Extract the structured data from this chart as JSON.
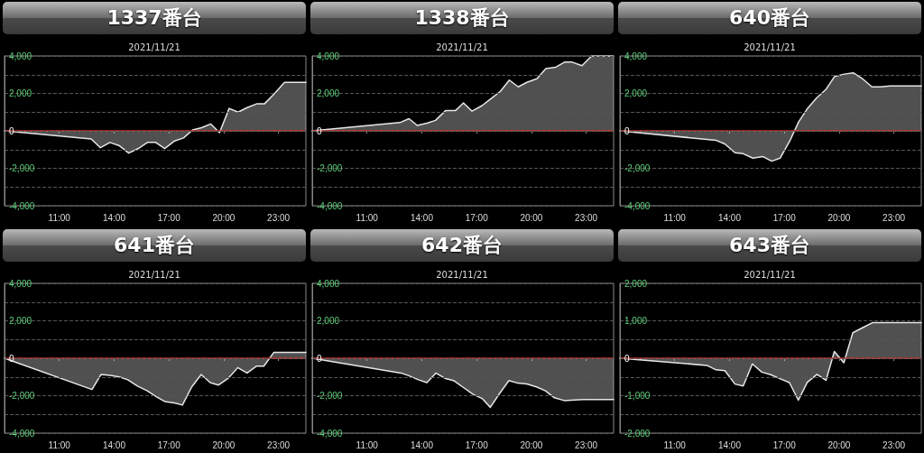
{
  "chart_data": [
    {
      "type": "area",
      "title": "1337番台",
      "subtitle": "2021/11/21",
      "xlim": [
        8,
        24.5
      ],
      "xticks": [
        {
          "value": 11,
          "label": "11:00"
        },
        {
          "value": 14,
          "label": "14:00"
        },
        {
          "value": 17,
          "label": "17:00"
        },
        {
          "value": 20,
          "label": "20:00"
        },
        {
          "value": 23,
          "label": "23:00"
        }
      ],
      "ylim": [
        -4000,
        4000
      ],
      "yticks": [
        {
          "value": -4000,
          "label": "-4,000"
        },
        {
          "value": -3000,
          "label": null
        },
        {
          "value": -2000,
          "label": "-2,000"
        },
        {
          "value": -1000,
          "label": null
        },
        {
          "value": 0,
          "label": "0"
        },
        {
          "value": 1000,
          "label": null
        },
        {
          "value": 2000,
          "label": "2,000"
        },
        {
          "value": 3000,
          "label": null
        },
        {
          "value": 4000,
          "label": "4,000"
        }
      ],
      "grid": "y",
      "marker": "none",
      "ref_lines": [
        {
          "axis": "y",
          "value": 0,
          "color": "#c0302a"
        }
      ],
      "series": [
        {
          "color": "#e6e6e6",
          "x": [
            8,
            12.75,
            13.25,
            13.77,
            14.26,
            14.8,
            15.33,
            15.82,
            16.28,
            16.77,
            17.31,
            17.8,
            18.3,
            18.79,
            19.28,
            19.77,
            20.3,
            20.79,
            21.28,
            21.8,
            22.23,
            22.79,
            23.33,
            24.5
          ],
          "values": [
            0,
            -430,
            -900,
            -620,
            -780,
            -1190,
            -940,
            -620,
            -620,
            -950,
            -540,
            -380,
            50,
            170,
            370,
            -100,
            1200,
            1000,
            1240,
            1440,
            1440,
            2000,
            2590,
            2590
          ]
        }
      ]
    },
    {
      "type": "area",
      "title": "1338番台",
      "subtitle": "2021/11/21",
      "xlim": [
        8,
        24.5
      ],
      "xticks": [
        {
          "value": 11,
          "label": "11:00"
        },
        {
          "value": 14,
          "label": "14:00"
        },
        {
          "value": 17,
          "label": "17:00"
        },
        {
          "value": 20,
          "label": "20:00"
        },
        {
          "value": 23,
          "label": "23:00"
        }
      ],
      "ylim": [
        -4000,
        4000
      ],
      "yticks": [
        {
          "value": -4000,
          "label": "-4,000"
        },
        {
          "value": -3000,
          "label": null
        },
        {
          "value": -2000,
          "label": "-2,000"
        },
        {
          "value": -1000,
          "label": null
        },
        {
          "value": 0,
          "label": "0"
        },
        {
          "value": 1000,
          "label": null
        },
        {
          "value": 2000,
          "label": "2,000"
        },
        {
          "value": 3000,
          "label": null
        },
        {
          "value": 4000,
          "label": "4,000"
        }
      ],
      "grid": "y",
      "marker": "none",
      "ref_lines": [
        {
          "axis": "y",
          "value": 0,
          "color": "#c0302a"
        }
      ],
      "series": [
        {
          "color": "#e6e6e6",
          "x": [
            8,
            12.8,
            13.3,
            13.75,
            14.28,
            14.75,
            15.3,
            15.84,
            16.28,
            16.75,
            17.3,
            17.8,
            18.3,
            18.79,
            19.28,
            19.75,
            20.3,
            20.79,
            21.33,
            21.82,
            22.23,
            22.77,
            23.3,
            24.5
          ],
          "values": [
            0,
            440,
            650,
            290,
            410,
            560,
            1080,
            1080,
            1490,
            1050,
            1350,
            1730,
            2110,
            2710,
            2350,
            2590,
            2780,
            3320,
            3400,
            3670,
            3670,
            3480,
            4000,
            4000
          ]
        }
      ]
    },
    {
      "type": "area",
      "title": "640番台",
      "subtitle": "2021/11/21",
      "xlim": [
        8,
        24.5
      ],
      "xticks": [
        {
          "value": 11,
          "label": "11:00"
        },
        {
          "value": 14,
          "label": "14:00"
        },
        {
          "value": 17,
          "label": "17:00"
        },
        {
          "value": 20,
          "label": "20:00"
        },
        {
          "value": 23,
          "label": "23:00"
        }
      ],
      "ylim": [
        -4000,
        4000
      ],
      "yticks": [
        {
          "value": -4000,
          "label": "-4,000"
        },
        {
          "value": -3000,
          "label": null
        },
        {
          "value": -2000,
          "label": "-2,000"
        },
        {
          "value": -1000,
          "label": null
        },
        {
          "value": 0,
          "label": "0"
        },
        {
          "value": 1000,
          "label": null
        },
        {
          "value": 2000,
          "label": "2,000"
        },
        {
          "value": 3000,
          "label": null
        },
        {
          "value": 4000,
          "label": "4,000"
        }
      ],
      "grid": "y",
      "marker": "none",
      "ref_lines": [
        {
          "axis": "y",
          "value": 0,
          "color": "#c0302a"
        }
      ],
      "series": [
        {
          "color": "#e6e6e6",
          "x": [
            8,
            13.28,
            13.74,
            14.3,
            14.75,
            15.28,
            15.82,
            16.31,
            16.77,
            17.3,
            17.79,
            18.28,
            18.77,
            19.26,
            19.75,
            20.28,
            20.77,
            21.31,
            21.8,
            22.26,
            22.79,
            24.5
          ],
          "values": [
            0,
            -510,
            -700,
            -1170,
            -1220,
            -1460,
            -1370,
            -1620,
            -1460,
            -540,
            490,
            1210,
            1760,
            2190,
            2900,
            3030,
            3100,
            2760,
            2350,
            2350,
            2400,
            2400
          ]
        }
      ]
    },
    {
      "type": "area",
      "title": "641番台",
      "subtitle": "2021/11/21",
      "xlim": [
        8,
        24.5
      ],
      "xticks": [
        {
          "value": 11,
          "label": "11:00"
        },
        {
          "value": 14,
          "label": "14:00"
        },
        {
          "value": 17,
          "label": "17:00"
        },
        {
          "value": 20,
          "label": "20:00"
        },
        {
          "value": 23,
          "label": "23:00"
        }
      ],
      "ylim": [
        -4000,
        4000
      ],
      "yticks": [
        {
          "value": -4000,
          "label": "-4,000"
        },
        {
          "value": -3000,
          "label": null
        },
        {
          "value": -2000,
          "label": "-2,000"
        },
        {
          "value": -1000,
          "label": null
        },
        {
          "value": 0,
          "label": "0"
        },
        {
          "value": 1000,
          "label": null
        },
        {
          "value": 2000,
          "label": "2,000"
        },
        {
          "value": 3000,
          "label": null
        },
        {
          "value": 4000,
          "label": "4,000"
        }
      ],
      "grid": "y",
      "marker": "none",
      "ref_lines": [
        {
          "axis": "y",
          "value": 0,
          "color": "#c0302a"
        }
      ],
      "series": [
        {
          "color": "#e6e6e6",
          "x": [
            8,
            12.79,
            13.28,
            13.8,
            14.3,
            14.75,
            15.28,
            15.82,
            16.31,
            16.77,
            17.3,
            17.74,
            18.25,
            18.77,
            19.26,
            19.72,
            20.25,
            20.77,
            21.28,
            21.8,
            22.2,
            22.74,
            24.5
          ],
          "values": [
            0,
            -1670,
            -870,
            -920,
            -1000,
            -1150,
            -1490,
            -1740,
            -2050,
            -2310,
            -2390,
            -2500,
            -1530,
            -870,
            -1300,
            -1430,
            -1070,
            -500,
            -790,
            -420,
            -420,
            310,
            310
          ]
        }
      ]
    },
    {
      "type": "area",
      "title": "642番台",
      "subtitle": "2021/11/21",
      "xlim": [
        8,
        24.5
      ],
      "xticks": [
        {
          "value": 11,
          "label": "11:00"
        },
        {
          "value": 14,
          "label": "14:00"
        },
        {
          "value": 17,
          "label": "17:00"
        },
        {
          "value": 20,
          "label": "20:00"
        },
        {
          "value": 23,
          "label": "23:00"
        }
      ],
      "ylim": [
        -4000,
        4000
      ],
      "yticks": [
        {
          "value": -4000,
          "label": "-4,000"
        },
        {
          "value": -3000,
          "label": null
        },
        {
          "value": -2000,
          "label": "-2,000"
        },
        {
          "value": -1000,
          "label": null
        },
        {
          "value": 0,
          "label": "0"
        },
        {
          "value": 1000,
          "label": null
        },
        {
          "value": 2000,
          "label": "2,000"
        },
        {
          "value": 3000,
          "label": null
        },
        {
          "value": 4000,
          "label": "4,000"
        }
      ],
      "grid": "y",
      "marker": "none",
      "ref_lines": [
        {
          "axis": "y",
          "value": 0,
          "color": "#c0302a"
        }
      ],
      "series": [
        {
          "color": "#e6e6e6",
          "x": [
            8,
            12.87,
            13.23,
            13.82,
            14.28,
            14.77,
            15.26,
            15.74,
            16.23,
            16.8,
            17.3,
            17.75,
            18.25,
            18.77,
            19.26,
            19.75,
            20.28,
            20.77,
            21.26,
            21.8,
            22.38,
            22.84,
            24.5
          ],
          "values": [
            0,
            -790,
            -910,
            -1150,
            -1300,
            -790,
            -1070,
            -1190,
            -1530,
            -1920,
            -2150,
            -2620,
            -1890,
            -1190,
            -1330,
            -1370,
            -1530,
            -1740,
            -2110,
            -2260,
            -2230,
            -2200,
            -2200
          ]
        }
      ]
    },
    {
      "type": "area",
      "title": "643番台",
      "subtitle": "2021/11/21",
      "xlim": [
        8,
        24.5
      ],
      "xticks": [
        {
          "value": 11,
          "label": "11:00"
        },
        {
          "value": 14,
          "label": "14:00"
        },
        {
          "value": 17,
          "label": "17:00"
        },
        {
          "value": 20,
          "label": "20:00"
        },
        {
          "value": 23,
          "label": "23:00"
        }
      ],
      "ylim": [
        -2000,
        2000
      ],
      "yticks": [
        {
          "value": -2000,
          "label": "-2,000"
        },
        {
          "value": -1500,
          "label": null
        },
        {
          "value": -1000,
          "label": "-1,000"
        },
        {
          "value": -500,
          "label": null
        },
        {
          "value": 0,
          "label": "0"
        },
        {
          "value": 500,
          "label": null
        },
        {
          "value": 1000,
          "label": "1,000"
        },
        {
          "value": 1500,
          "label": null
        },
        {
          "value": 2000,
          "label": "2,000"
        }
      ],
      "grid": "y",
      "marker": "none",
      "ref_lines": [
        {
          "axis": "y",
          "value": 0,
          "color": "#c0302a"
        }
      ],
      "series": [
        {
          "color": "#e6e6e6",
          "x": [
            8,
            12.77,
            13.26,
            13.75,
            14.3,
            14.75,
            15.25,
            15.77,
            16.26,
            16.79,
            17.28,
            17.77,
            18.26,
            18.79,
            19.28,
            19.74,
            20.26,
            20.75,
            21.3,
            21.82,
            24.5
          ],
          "values": [
            0,
            -190,
            -310,
            -330,
            -690,
            -740,
            -150,
            -370,
            -440,
            -550,
            -650,
            -1120,
            -640,
            -430,
            -590,
            180,
            -120,
            680,
            820,
            950,
            950
          ]
        }
      ]
    }
  ]
}
